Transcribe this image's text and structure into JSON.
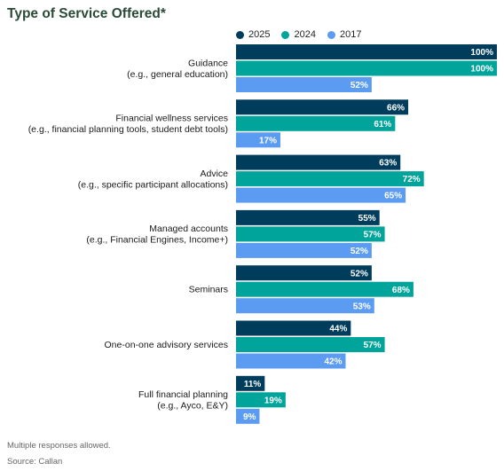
{
  "title": "Type of Service Offered*",
  "footnotes": {
    "note": "Multiple responses allowed.",
    "source": "Source: Callan"
  },
  "chart_data": {
    "type": "bar",
    "orientation": "horizontal",
    "xlim": [
      0,
      100
    ],
    "grid": false,
    "legend_position": "top",
    "value_suffix": "%",
    "categories": [
      [
        "Guidance",
        "(e.g., general education)"
      ],
      [
        "Financial wellness services",
        "(e.g., financial planning tools, student debt tools)"
      ],
      [
        "Advice",
        "(e.g.,  specific participant allocations)"
      ],
      [
        "Managed accounts",
        "(e.g., Financial Engines, Income+)"
      ],
      [
        "Seminars"
      ],
      [
        "One-on-one advisory services"
      ],
      [
        "Full financial planning",
        "(e.g., Ayco, E&Y)"
      ]
    ],
    "series": [
      {
        "name": "2025",
        "color": "#003d5c",
        "values": [
          100,
          66,
          63,
          55,
          52,
          44,
          11
        ]
      },
      {
        "name": "2024",
        "color": "#00a49a",
        "values": [
          100,
          61,
          72,
          57,
          68,
          57,
          19
        ]
      },
      {
        "name": "2017",
        "color": "#5b9cf2",
        "values": [
          52,
          17,
          65,
          52,
          53,
          42,
          9
        ]
      }
    ]
  }
}
